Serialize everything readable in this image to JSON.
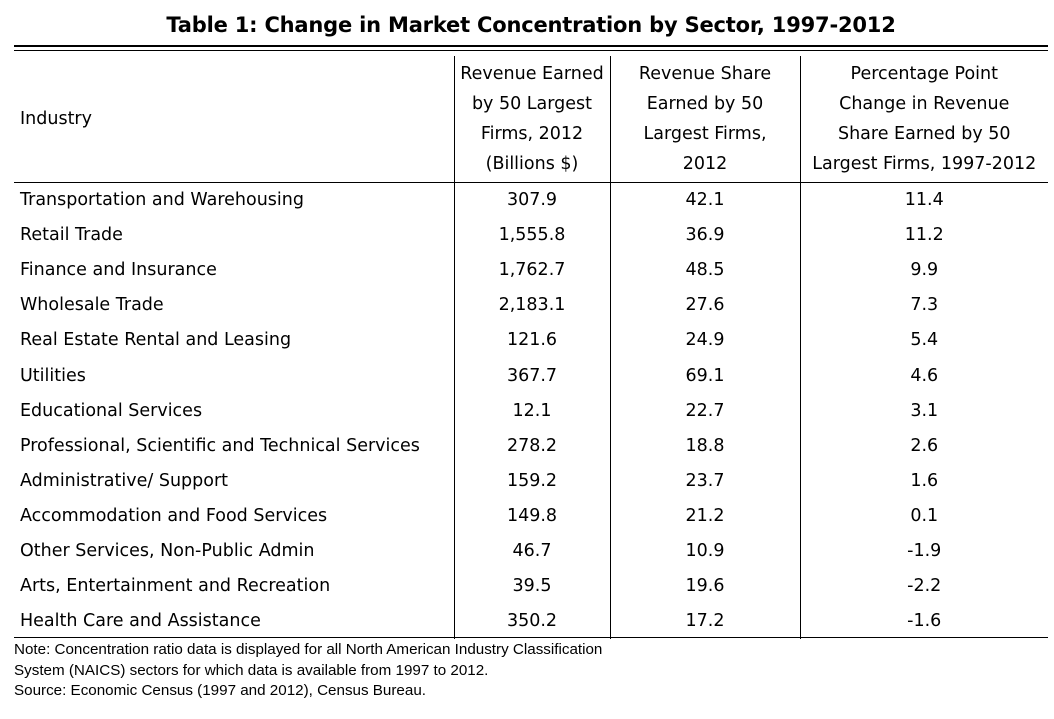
{
  "title": "Table 1: Change in Market Concentration by Sector, 1997-2012",
  "headers": {
    "industry": "Industry",
    "revenue": [
      "Revenue Earned",
      "by 50 Largest",
      "Firms, 2012",
      "(Billions $)"
    ],
    "share": [
      "Revenue Share",
      "Earned by 50",
      "Largest Firms,",
      "2012"
    ],
    "change": [
      "Percentage Point",
      "Change in Revenue",
      "Share Earned by 50",
      "Largest Firms, 1997-2012"
    ]
  },
  "rows": [
    {
      "industry": "Transportation and Warehousing",
      "revenue": "307.9",
      "share": "42.1",
      "change": "11.4"
    },
    {
      "industry": "Retail Trade",
      "revenue": "1,555.8",
      "share": "36.9",
      "change": "11.2"
    },
    {
      "industry": "Finance and Insurance",
      "revenue": "1,762.7",
      "share": "48.5",
      "change": "9.9"
    },
    {
      "industry": "Wholesale Trade",
      "revenue": "2,183.1",
      "share": "27.6",
      "change": "7.3"
    },
    {
      "industry": "Real Estate Rental and Leasing",
      "revenue": "121.6",
      "share": "24.9",
      "change": "5.4"
    },
    {
      "industry": "Utilities",
      "revenue": "367.7",
      "share": "69.1",
      "change": "4.6"
    },
    {
      "industry": "Educational Services",
      "revenue": "12.1",
      "share": "22.7",
      "change": "3.1"
    },
    {
      "industry": "Professional, Scientific and Technical Services",
      "revenue": "278.2",
      "share": "18.8",
      "change": "2.6"
    },
    {
      "industry": "Administrative/ Support",
      "revenue": "159.2",
      "share": "23.7",
      "change": "1.6"
    },
    {
      "industry": "Accommodation and Food Services",
      "revenue": "149.8",
      "share": "21.2",
      "change": "0.1"
    },
    {
      "industry": "Other Services, Non-Public Admin",
      "revenue": "46.7",
      "share": "10.9",
      "change": "-1.9"
    },
    {
      "industry": "Arts, Entertainment and Recreation",
      "revenue": "39.5",
      "share": "19.6",
      "change": "-2.2"
    },
    {
      "industry": "Health Care and Assistance",
      "revenue": "350.2",
      "share": "17.2",
      "change": "-1.6"
    }
  ],
  "notes": {
    "line1": "Note: Concentration ratio data is displayed for all North American Industry Classification",
    "line2": "System (NAICS) sectors for which data is available from 1997 to 2012.",
    "line3": "Source: Economic Census (1997 and 2012), Census Bureau."
  }
}
